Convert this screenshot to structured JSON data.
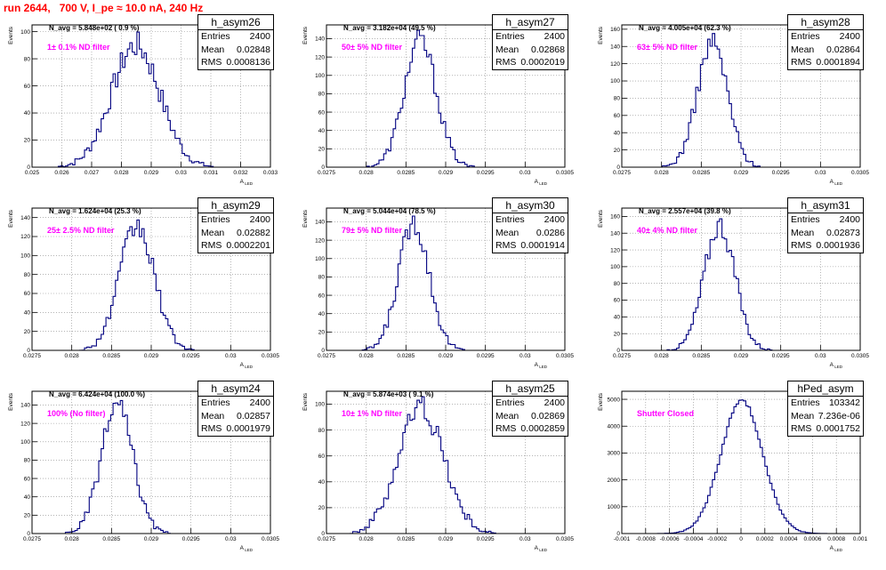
{
  "title": "run 2644,   700 V, I_pe ≈ 10.0 nA, 240 Hz",
  "colors": {
    "hist": "#000080",
    "annotation": "#ff00ff",
    "title": "#ff0000",
    "grid": "#888888"
  },
  "chart_data": [
    {
      "type": "histogram",
      "name": "h_asym26",
      "stats": {
        "Entries": "2400",
        "Mean": "0.02848",
        "RMS": "0.0008136"
      },
      "navg": "N_avg = 5.848e+02 ( 0.9 %)",
      "annotation": "1± 0.1% ND filter",
      "ylabel": "Events",
      "xlabel": "A_LED",
      "xlim": [
        0.025,
        0.033
      ],
      "ylim": [
        0,
        105
      ],
      "xticks": [
        "0.025",
        "0.026",
        "0.027",
        "0.028",
        "0.029",
        "0.03",
        "0.031",
        "0.032",
        "0.033"
      ],
      "yticks": [
        0,
        20,
        40,
        60,
        80,
        100
      ],
      "mean": 0.02848,
      "sigma": 0.0008136,
      "peak": 90
    },
    {
      "type": "histogram",
      "name": "h_asym27",
      "stats": {
        "Entries": "2400",
        "Mean": "0.02868",
        "RMS": "0.0002019"
      },
      "navg": "N_avg = 3.182e+04 (49.5 %)",
      "annotation": "50± 5% ND filter",
      "ylabel": "Events",
      "xlabel": "A_LED",
      "xlim": [
        0.0275,
        0.0305
      ],
      "ylim": [
        0,
        155
      ],
      "xticks": [
        "0.0275",
        "0.028",
        "0.0285",
        "0.029",
        "0.0295",
        "0.03",
        "0.0305"
      ],
      "yticks": [
        0,
        20,
        40,
        60,
        80,
        100,
        120,
        140
      ],
      "mean": 0.02868,
      "sigma": 0.0002019,
      "peak": 138
    },
    {
      "type": "histogram",
      "name": "h_asym28",
      "stats": {
        "Entries": "2400",
        "Mean": "0.02864",
        "RMS": "0.0001894"
      },
      "navg": "N_avg = 4.005e+04 (62.3 %)",
      "annotation": "63± 5% ND filter",
      "ylabel": "Events",
      "xlabel": "A_LED",
      "xlim": [
        0.0275,
        0.0305
      ],
      "ylim": [
        0,
        165
      ],
      "xticks": [
        "0.0275",
        "0.028",
        "0.0285",
        "0.029",
        "0.0295",
        "0.03",
        "0.0305"
      ],
      "yticks": [
        0,
        20,
        40,
        60,
        80,
        100,
        120,
        140,
        160
      ],
      "mean": 0.02864,
      "sigma": 0.0001894,
      "peak": 145
    },
    {
      "type": "histogram",
      "name": "h_asym29",
      "stats": {
        "Entries": "2400",
        "Mean": "0.02882",
        "RMS": "0.0002201"
      },
      "navg": "N_avg = 1.624e+04 (25.3 %)",
      "annotation": "25± 2.5% ND filter",
      "ylabel": "Events",
      "xlabel": "A_LED",
      "xlim": [
        0.0275,
        0.0305
      ],
      "ylim": [
        0,
        150
      ],
      "xticks": [
        "0.0275",
        "0.028",
        "0.0285",
        "0.029",
        "0.0295",
        "0.03",
        "0.0305"
      ],
      "yticks": [
        0,
        20,
        40,
        60,
        80,
        100,
        120,
        140
      ],
      "mean": 0.02882,
      "sigma": 0.0002201,
      "peak": 130
    },
    {
      "type": "histogram",
      "name": "h_asym30",
      "stats": {
        "Entries": "2400",
        "Mean": "0.0286",
        "RMS": "0.0001914"
      },
      "navg": "N_avg = 5.044e+04 (78.5 %)",
      "annotation": "79± 5% ND filter",
      "ylabel": "Events",
      "xlabel": "A_LED",
      "xlim": [
        0.0275,
        0.0305
      ],
      "ylim": [
        0,
        155
      ],
      "xticks": [
        "0.0275",
        "0.028",
        "0.0285",
        "0.029",
        "0.0295",
        "0.03",
        "0.0305"
      ],
      "yticks": [
        0,
        20,
        40,
        60,
        80,
        100,
        120,
        140
      ],
      "mean": 0.0286,
      "sigma": 0.0001914,
      "peak": 140
    },
    {
      "type": "histogram",
      "name": "h_asym31",
      "stats": {
        "Entries": "2400",
        "Mean": "0.02873",
        "RMS": "0.0001936"
      },
      "navg": "N_avg = 2.557e+04 (39.8 %)",
      "annotation": "40± 4% ND filter",
      "ylabel": "Events",
      "xlabel": "A_LED",
      "xlim": [
        0.0275,
        0.0305
      ],
      "ylim": [
        0,
        170
      ],
      "xticks": [
        "0.0275",
        "0.028",
        "0.0285",
        "0.029",
        "0.0295",
        "0.03",
        "0.0305"
      ],
      "yticks": [
        0,
        20,
        40,
        60,
        80,
        100,
        120,
        140,
        160
      ],
      "mean": 0.02873,
      "sigma": 0.0001936,
      "peak": 150
    },
    {
      "type": "histogram",
      "name": "h_asym24",
      "stats": {
        "Entries": "2400",
        "Mean": "0.02857",
        "RMS": "0.0001979"
      },
      "navg": "N_avg = 6.424e+04 (100.0 %)",
      "annotation": "100% (No filter)",
      "ylabel": "Events",
      "xlabel": "A_LED",
      "xlim": [
        0.0275,
        0.0305
      ],
      "ylim": [
        0,
        155
      ],
      "xticks": [
        "0.0275",
        "0.028",
        "0.0285",
        "0.029",
        "0.0295",
        "0.03",
        "0.0305"
      ],
      "yticks": [
        0,
        20,
        40,
        60,
        80,
        100,
        120,
        140
      ],
      "mean": 0.02857,
      "sigma": 0.0001979,
      "peak": 140
    },
    {
      "type": "histogram",
      "name": "h_asym25",
      "stats": {
        "Entries": "2400",
        "Mean": "0.02869",
        "RMS": "0.0002859"
      },
      "navg": "N_avg = 5.874e+03 ( 9.1 %)",
      "annotation": "10± 1% ND filter",
      "ylabel": "Events",
      "xlabel": "A_LED",
      "xlim": [
        0.0275,
        0.0305
      ],
      "ylim": [
        0,
        110
      ],
      "xticks": [
        "0.0275",
        "0.028",
        "0.0285",
        "0.029",
        "0.0295",
        "0.03",
        "0.0305"
      ],
      "yticks": [
        0,
        20,
        40,
        60,
        80,
        100
      ],
      "mean": 0.02869,
      "sigma": 0.0002859,
      "peak": 98
    },
    {
      "type": "histogram",
      "name": "hPed_asym",
      "stats": {
        "Entries": "103342",
        "Mean": "7.236e-06",
        "RMS": "0.0001752"
      },
      "navg": "",
      "annotation": "Shutter Closed",
      "ylabel": "Events",
      "xlabel": "A_LED",
      "xlim": [
        -0.001,
        0.001
      ],
      "ylim": [
        0,
        5300
      ],
      "xticks": [
        "-0.001",
        "-0.0008",
        "-0.0006",
        "-0.0004",
        "-0.0002",
        "0",
        "0.0002",
        "0.0004",
        "0.0006",
        "0.0008",
        "0.001"
      ],
      "yticks": [
        0,
        1000,
        2000,
        3000,
        4000,
        5000
      ],
      "mean": 7.236e-06,
      "sigma": 0.0001752,
      "peak": 4950
    }
  ]
}
